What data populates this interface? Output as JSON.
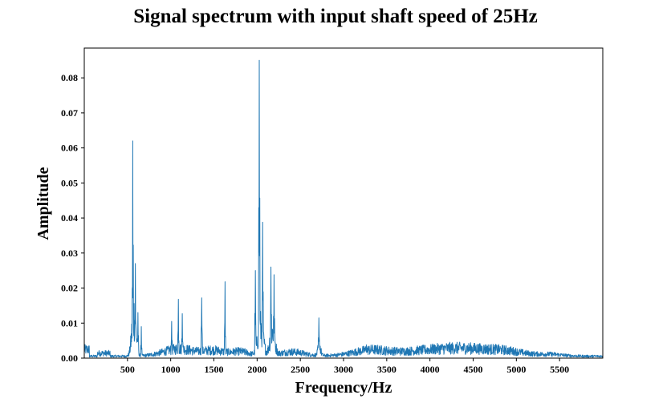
{
  "chart_data": {
    "type": "line",
    "title": "Signal spectrum with input shaft speed of 25Hz",
    "xlabel": "Frequency/Hz",
    "ylabel": "Amplitude",
    "xlim": [
      0,
      6000
    ],
    "ylim": [
      0,
      0.0885
    ],
    "x_ticks": [
      500,
      1000,
      1500,
      2000,
      2500,
      3000,
      3500,
      4000,
      4500,
      5000,
      5500
    ],
    "x_tick_labels": [
      "500",
      "1000",
      "1500",
      "2000",
      "2500",
      "3000",
      "3500",
      "4000",
      "4500",
      "5000",
      "5500"
    ],
    "y_ticks": [
      0,
      0.01,
      0.02,
      0.03,
      0.04,
      0.05,
      0.06,
      0.07,
      0.08
    ],
    "y_tick_labels": [
      "0.00",
      "0.01",
      "0.02",
      "0.03",
      "0.04",
      "0.05",
      "0.06",
      "0.07",
      "0.08"
    ],
    "grid": false,
    "series_color": "#1f77b4",
    "peaks": [
      {
        "x": 560,
        "y": 0.062
      },
      {
        "x": 590,
        "y": 0.027
      },
      {
        "x": 620,
        "y": 0.013
      },
      {
        "x": 660,
        "y": 0.009
      },
      {
        "x": 1010,
        "y": 0.0105
      },
      {
        "x": 1090,
        "y": 0.0168
      },
      {
        "x": 1135,
        "y": 0.0127
      },
      {
        "x": 1360,
        "y": 0.0172
      },
      {
        "x": 1630,
        "y": 0.0218
      },
      {
        "x": 1980,
        "y": 0.025
      },
      {
        "x": 2025,
        "y": 0.085
      },
      {
        "x": 2065,
        "y": 0.0388
      },
      {
        "x": 2160,
        "y": 0.026
      },
      {
        "x": 2195,
        "y": 0.0238
      },
      {
        "x": 2715,
        "y": 0.0115
      },
      {
        "x": 3265,
        "y": 0.0038
      }
    ]
  }
}
